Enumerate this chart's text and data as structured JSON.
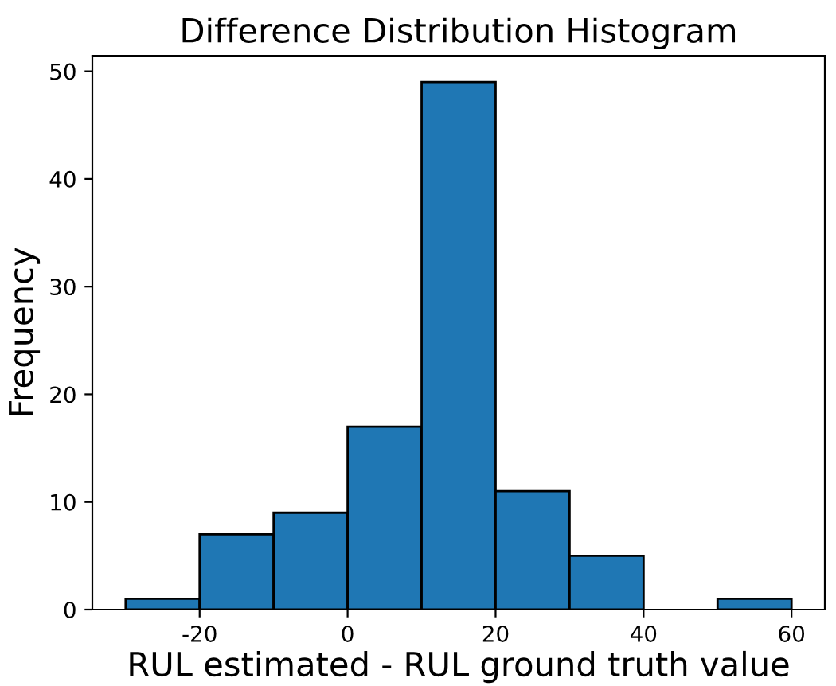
{
  "chart_data": {
    "type": "histogram",
    "title": "Difference Distribution Histogram",
    "xlabel": "RUL estimated - RUL ground truth value",
    "ylabel": "Frequency",
    "bins": [
      -30,
      -20,
      -10,
      0,
      10,
      20,
      30,
      40,
      50,
      60
    ],
    "values": [
      1,
      7,
      9,
      17,
      49,
      11,
      5,
      0,
      1
    ],
    "color": "#1f77b4",
    "xlim": [
      -34.5,
      64.5
    ],
    "ylim": [
      0,
      51.45
    ],
    "xticks": [
      -20,
      0,
      20,
      40,
      60
    ],
    "yticks": [
      0,
      10,
      20,
      30,
      40,
      50
    ],
    "grid": false,
    "legend": false
  }
}
